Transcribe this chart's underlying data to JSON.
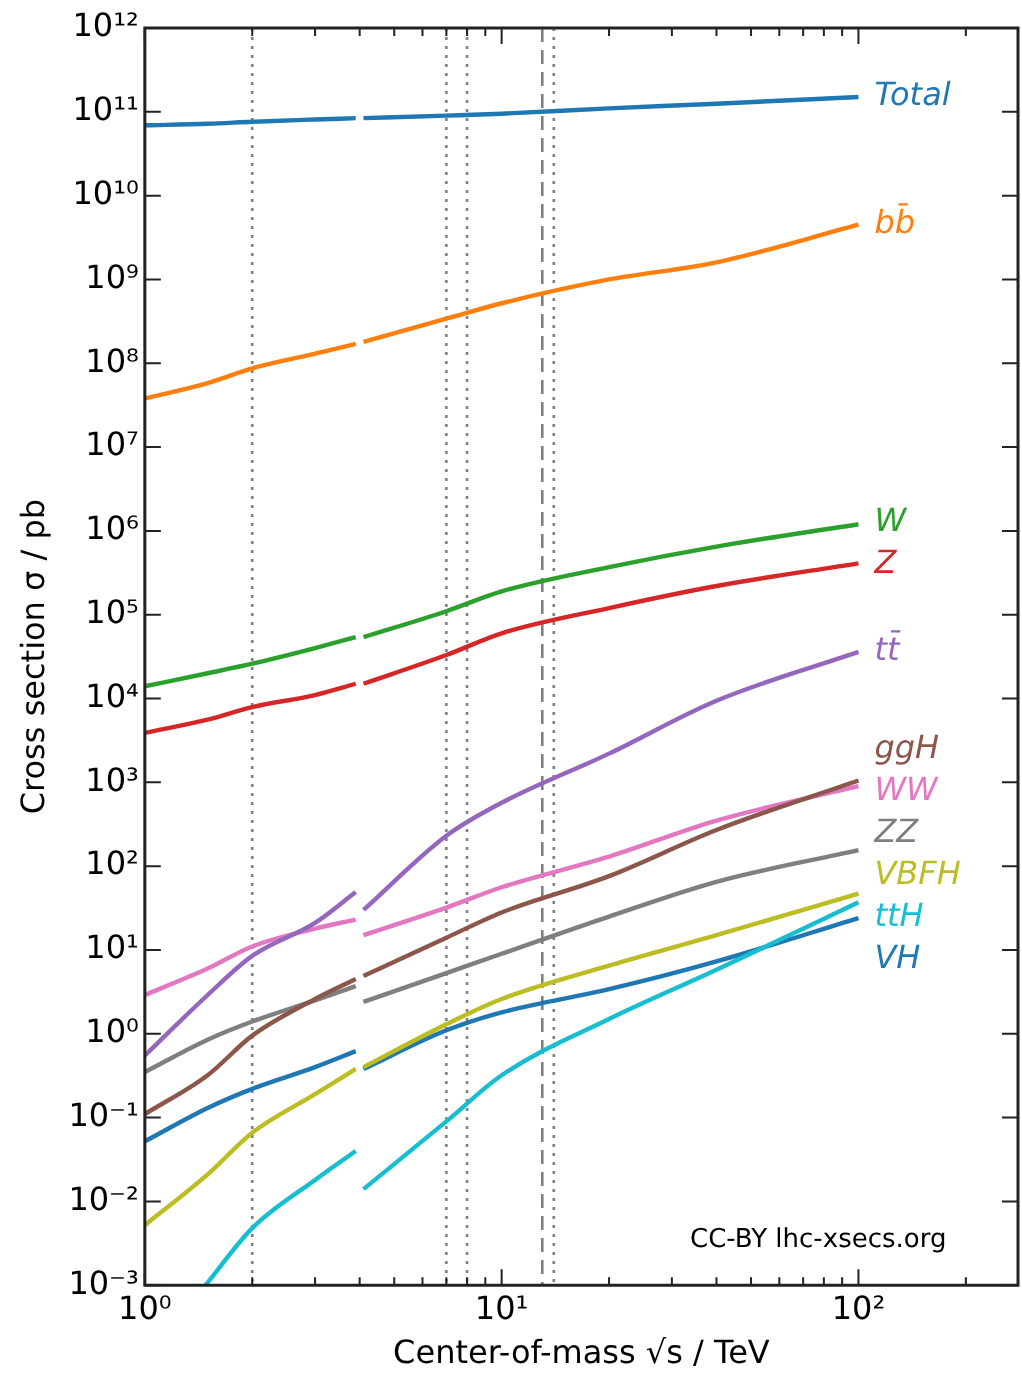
{
  "chart_data": {
    "type": "line",
    "xlabel": "Center-of-mass √s / TeV",
    "ylabel": "Cross section σ / pb",
    "log": "xy",
    "legend": false,
    "xlim": [
      1,
      280
    ],
    "ylim": [
      0.001,
      1000000000000
    ],
    "xticks": [
      {
        "value": 1,
        "label": "10⁰"
      },
      {
        "value": 2,
        "label": null
      },
      {
        "value": 3,
        "label": null
      },
      {
        "value": 4,
        "label": null
      },
      {
        "value": 5,
        "label": null
      },
      {
        "value": 6,
        "label": null
      },
      {
        "value": 7,
        "label": null
      },
      {
        "value": 8,
        "label": null
      },
      {
        "value": 9,
        "label": null
      },
      {
        "value": 10,
        "label": "10¹"
      },
      {
        "value": 20,
        "label": null
      },
      {
        "value": 30,
        "label": null
      },
      {
        "value": 40,
        "label": null
      },
      {
        "value": 50,
        "label": null
      },
      {
        "value": 60,
        "label": null
      },
      {
        "value": 70,
        "label": null
      },
      {
        "value": 80,
        "label": null
      },
      {
        "value": 90,
        "label": null
      },
      {
        "value": 100,
        "label": "10²"
      },
      {
        "value": 200,
        "label": null
      }
    ],
    "yticks": [
      {
        "value": 0.001,
        "label": "10⁻³"
      },
      {
        "value": 0.01,
        "label": "10⁻²"
      },
      {
        "value": 0.1,
        "label": "10⁻¹"
      },
      {
        "value": 1,
        "label": "10⁰"
      },
      {
        "value": 10,
        "label": "10¹"
      },
      {
        "value": 100,
        "label": "10²"
      },
      {
        "value": 1000,
        "label": "10³"
      },
      {
        "value": 10000,
        "label": "10⁴"
      },
      {
        "value": 100000,
        "label": "10⁵"
      },
      {
        "value": 1000000,
        "label": "10⁶"
      },
      {
        "value": 10000000,
        "label": "10⁷"
      },
      {
        "value": 100000000,
        "label": "10⁸"
      },
      {
        "value": 1000000000,
        "label": "10⁹"
      },
      {
        "value": 10000000000,
        "label": "10¹⁰"
      },
      {
        "value": 100000000000,
        "label": "10¹¹"
      },
      {
        "value": 1000000000000,
        "label": "10¹²"
      }
    ],
    "x": [
      1,
      1.5,
      2,
      3,
      3.9,
      4,
      4.1,
      7,
      10,
      20,
      40,
      100
    ],
    "series": [
      {
        "name": "Total",
        "color": "#1f77b4",
        "values": [
          69000000000,
          72000000000,
          76000000000,
          81000000000,
          84000000000,
          null,
          84000000000,
          90000000000,
          95000000000,
          110000000000,
          125000000000,
          150000000000
        ]
      },
      {
        "name": "bb̄",
        "color": "#ff7f0e",
        "values": [
          38000000,
          58000000,
          87000000,
          130000000,
          170000000,
          null,
          180000000,
          340000000,
          520000000,
          1000000000,
          1600000000,
          4500000000
        ]
      },
      {
        "name": "W",
        "color": "#2ca02c",
        "values": [
          14000,
          20000,
          26000,
          40000,
          54000,
          null,
          54000,
          110000,
          190000,
          370000,
          650000,
          1200000
        ]
      },
      {
        "name": "Z",
        "color": "#d62728",
        "values": [
          3900,
          5600,
          7900,
          11000,
          15000,
          null,
          15000,
          33000,
          60000,
          120000,
          220000,
          410000
        ]
      },
      {
        "name": "tt̄",
        "color": "#9467bd",
        "values": [
          0.55,
          2.9,
          8.5,
          21,
          49,
          null,
          30,
          230,
          570,
          2200,
          9400,
          36000
        ]
      },
      {
        "name": "ggH",
        "color": "#8c564b",
        "values": [
          0.11,
          0.32,
          0.95,
          2.6,
          4.5,
          null,
          4.9,
          14,
          28,
          76,
          270,
          1050
        ]
      },
      {
        "name": "WW",
        "color": "#e377c2",
        "values": [
          2.9,
          6,
          11,
          18,
          23,
          null,
          15,
          32,
          56,
          130,
          350,
          900
        ]
      },
      {
        "name": "ZZ",
        "color": "#7f7f7f",
        "values": [
          0.35,
          0.85,
          1.4,
          2.5,
          3.7,
          null,
          2.4,
          5.3,
          9,
          25,
          65,
          155
        ]
      },
      {
        "name": "VBFH",
        "color": "#bcbd22",
        "values": [
          0.0052,
          0.021,
          0.066,
          0.19,
          0.38,
          null,
          0.4,
          1.3,
          2.6,
          6.5,
          15,
          47
        ]
      },
      {
        "name": "ttH",
        "color": "#17becf",
        "x": [
          1.48,
          2,
          3,
          3.9,
          4,
          4.1,
          7,
          10,
          20,
          40,
          100
        ],
        "values": [
          0.001,
          0.0048,
          0.018,
          0.04,
          null,
          0.014,
          0.09,
          0.32,
          1.5,
          5.8,
          37
        ]
      },
      {
        "name": "VH",
        "color": "#1f77b4",
        "values": [
          0.052,
          0.13,
          0.22,
          0.4,
          0.62,
          null,
          0.38,
          1.1,
          1.8,
          3.4,
          7.3,
          24
        ]
      }
    ],
    "ref_lines": [
      {
        "axis": "x",
        "value": 2,
        "color": "#808080",
        "line_style": "dotted"
      },
      {
        "axis": "x",
        "value": 7,
        "color": "#808080",
        "line_style": "dotted"
      },
      {
        "axis": "x",
        "value": 8,
        "color": "#808080",
        "line_style": "dotted"
      },
      {
        "axis": "x",
        "value": 13,
        "color": "#808080",
        "line_style": "dashed"
      },
      {
        "axis": "x",
        "value": 14,
        "color": "#808080",
        "line_style": "dotted"
      }
    ],
    "annotations": [
      "CC-BY lhc-xsecs.org"
    ]
  }
}
